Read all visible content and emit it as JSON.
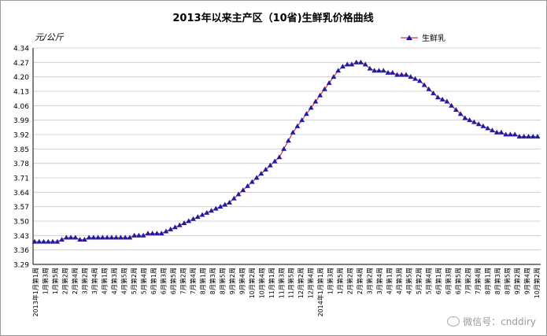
{
  "chart_data": {
    "type": "line",
    "title": "2013年以来主产区（10省)生鲜乳价格曲线",
    "ylabel": "元/公斤",
    "ylim": [
      3.29,
      4.34
    ],
    "yticks": [
      "3.29",
      "3.36",
      "3.43",
      "3.50",
      "3.57",
      "3.64",
      "3.71",
      "3.78",
      "3.85",
      "3.92",
      "3.99",
      "4.06",
      "4.13",
      "4.20",
      "4.27",
      "4.34"
    ],
    "grid": "horizontal",
    "legend": "top-right",
    "series": [
      {
        "name": "生鲜乳",
        "color": "#1c1ca8",
        "values": [
          3.4,
          3.4,
          3.4,
          3.4,
          3.4,
          3.4,
          3.41,
          3.42,
          3.42,
          3.42,
          3.41,
          3.41,
          3.42,
          3.42,
          3.42,
          3.42,
          3.42,
          3.42,
          3.42,
          3.42,
          3.42,
          3.42,
          3.43,
          3.43,
          3.43,
          3.44,
          3.44,
          3.44,
          3.44,
          3.45,
          3.46,
          3.47,
          3.48,
          3.49,
          3.5,
          3.51,
          3.52,
          3.53,
          3.54,
          3.55,
          3.56,
          3.57,
          3.58,
          3.59,
          3.61,
          3.63,
          3.65,
          3.67,
          3.69,
          3.71,
          3.73,
          3.75,
          3.77,
          3.79,
          3.81,
          3.85,
          3.89,
          3.93,
          3.96,
          3.99,
          4.02,
          4.05,
          4.08,
          4.11,
          4.14,
          4.17,
          4.2,
          4.23,
          4.25,
          4.26,
          4.26,
          4.27,
          4.27,
          4.26,
          4.24,
          4.23,
          4.23,
          4.23,
          4.22,
          4.22,
          4.21,
          4.21,
          4.21,
          4.2,
          4.19,
          4.18,
          4.16,
          4.14,
          4.12,
          4.1,
          4.09,
          4.08,
          4.06,
          4.04,
          4.02,
          4.0,
          3.99,
          3.98,
          3.97,
          3.96,
          3.95,
          3.94,
          3.93,
          3.93,
          3.92,
          3.92,
          3.92,
          3.91,
          3.91,
          3.91,
          3.91,
          3.91
        ]
      }
    ],
    "xlabels": [
      "2013年1月第1周",
      "1月第3周",
      "1月第5周",
      "2月第2周",
      "2月第4周",
      "3月第2周",
      "3月第4周",
      "4月第1周",
      "4月第3周",
      "4月第5周",
      "5月第2周",
      "5月第4周",
      "6月第1周",
      "6月第3周",
      "6月第5周",
      "7月第2周",
      "7月第4周",
      "8月第1周",
      "8月第3周",
      "8月第5周",
      "9月第2周",
      "9月第4周",
      "10月第2周",
      "10月第4周",
      "11月第1周",
      "11月第3周",
      "11月第5周",
      "12月第2周",
      "12月第4周",
      "2014年1月第1周",
      "1月第3周",
      "1月第5周",
      "2月第2周",
      "2月第4周",
      "3月第2周",
      "3月第4周",
      "4月第1周",
      "4月第3周",
      "4月第5周",
      "5月第2周",
      "5月第4周",
      "6月第1周",
      "6月第3周",
      "6月第5周",
      "7月第2周",
      "7月第4周",
      "8月第1周",
      "8月第3周",
      "8月第5周",
      "9月第2周",
      "9月第4周",
      "10月第2周"
    ]
  },
  "watermark": "微信号：cnddiry"
}
